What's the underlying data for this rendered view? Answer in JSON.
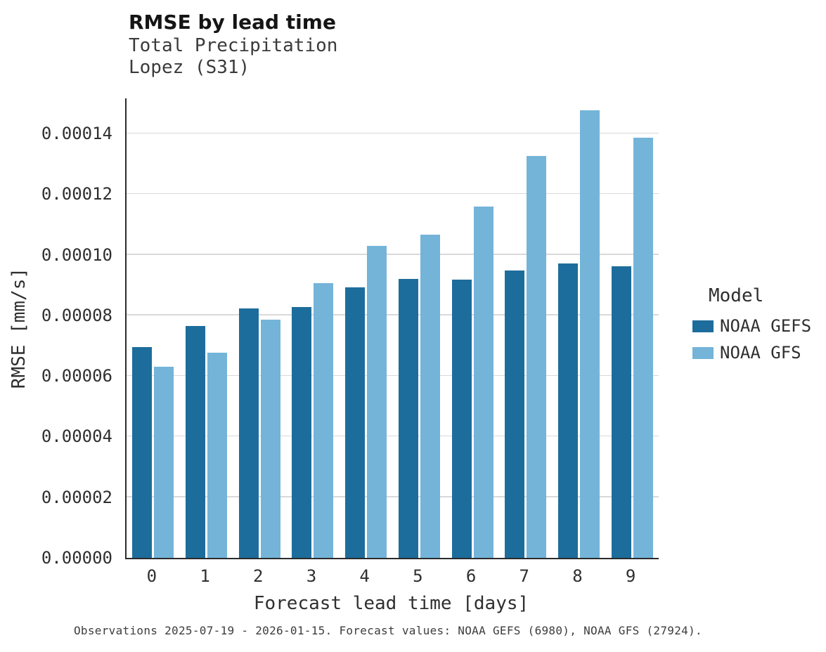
{
  "chart_data": {
    "type": "bar",
    "title": "RMSE by lead time",
    "subtitle": [
      "Total Precipitation",
      "Lopez (S31)"
    ],
    "xlabel": "Forecast lead time [days]",
    "ylabel": "RMSE [mm/s]",
    "categories": [
      0,
      1,
      2,
      3,
      4,
      5,
      6,
      7,
      8,
      9
    ],
    "series": [
      {
        "name": "NOAA GEFS",
        "color": "#1d6d9c",
        "values": [
          6.95e-05,
          7.65e-05,
          8.24e-05,
          8.28e-05,
          8.92e-05,
          9.21e-05,
          9.19e-05,
          9.48e-05,
          9.72e-05,
          9.62e-05
        ]
      },
      {
        "name": "NOAA GFS",
        "color": "#74b4d9",
        "values": [
          6.3e-05,
          6.76e-05,
          7.87e-05,
          9.06e-05,
          0.000103,
          0.0001066,
          0.000116,
          0.0001326,
          0.0001476,
          0.0001387
        ]
      }
    ],
    "ylim": [
      0,
      0.0001516
    ],
    "yticks": [
      0.0,
      2e-05,
      4e-05,
      6e-05,
      8e-05,
      0.0001,
      0.00012,
      0.00014
    ],
    "ytick_labels": [
      "0.00000",
      "0.00002",
      "0.00004",
      "0.00006",
      "0.00008",
      "0.00010",
      "0.00012",
      "0.00014"
    ],
    "grid": true,
    "legend_title": "Model",
    "legend_position": "right"
  },
  "caption": "Observations 2025-07-19 - 2026-01-15. Forecast values: NOAA GEFS (6980), NOAA GFS (27924)."
}
